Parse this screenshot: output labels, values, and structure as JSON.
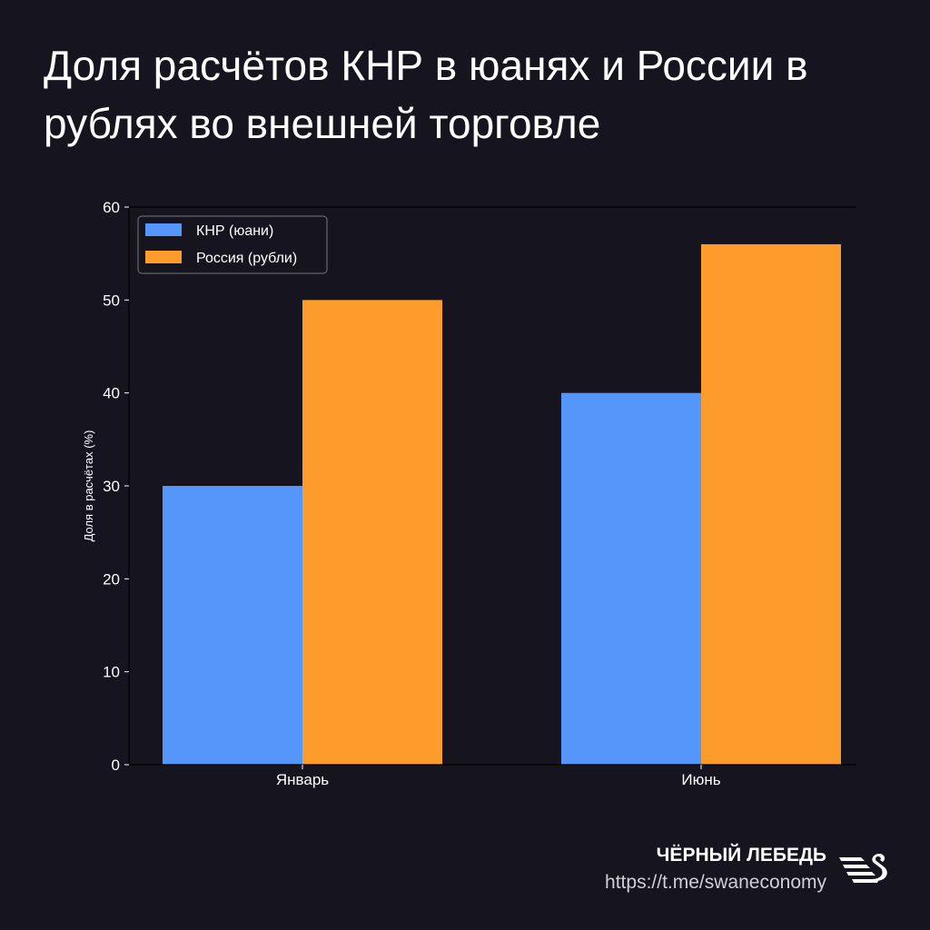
{
  "title": "Доля расчётов КНР в юанях и России в рублях во внешней торговле",
  "chart_data": {
    "type": "bar",
    "title": "Доля расчётов КНР в юанях и России в рублях во внешней торговле",
    "categories": [
      "Январь",
      "Июнь"
    ],
    "series": [
      {
        "name": "КНР (юани)",
        "values": [
          30,
          40
        ],
        "color": "#5596fa"
      },
      {
        "name": "Россия (рубли)",
        "values": [
          50,
          56
        ],
        "color": "#fd9c2b"
      }
    ],
    "xlabel": "",
    "ylabel": "Доля в расчётах (%)",
    "ylim": [
      0,
      60
    ],
    "yticks": [
      0,
      10,
      20,
      30,
      40,
      50,
      60
    ],
    "grid": false,
    "legend": "top-left"
  },
  "footer": {
    "brand": "ЧЁРНЫЙ ЛЕБЕДЬ",
    "url": "https://t.me/swaneconomy"
  }
}
